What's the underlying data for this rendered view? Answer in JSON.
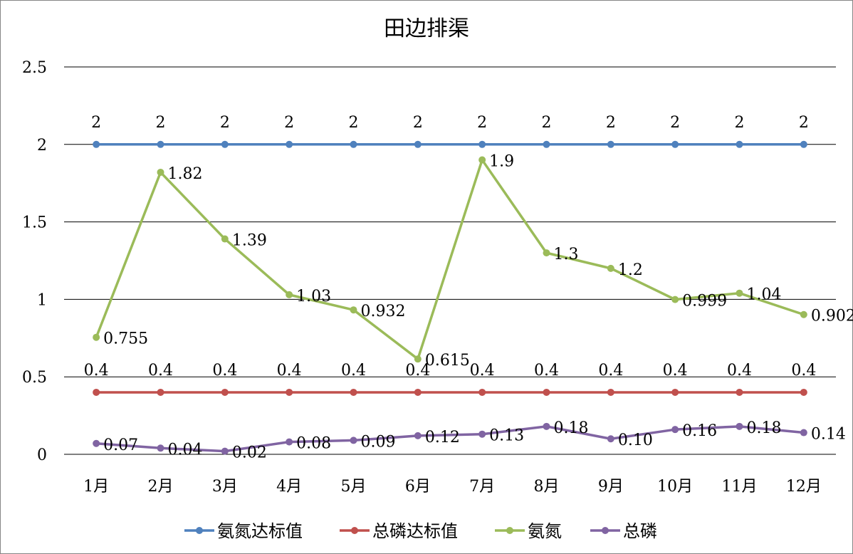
{
  "chart_data": {
    "type": "line",
    "title": "田边排渠",
    "xlabel": "",
    "ylabel": "",
    "categories": [
      "1月",
      "2月",
      "3月",
      "4月",
      "5月",
      "6月",
      "7月",
      "8月",
      "9月",
      "10月",
      "11月",
      "12月"
    ],
    "ylim": [
      0,
      2.5
    ],
    "yticks": [
      0,
      0.5,
      1,
      1.5,
      2,
      2.5
    ],
    "ytick_labels": [
      "0",
      "0.5",
      "1",
      "1.5",
      "2",
      "2.5"
    ],
    "grid": true,
    "legend_position": "bottom",
    "series": [
      {
        "name": "氨氮达标值",
        "color": "#4F81BD",
        "values": [
          2,
          2,
          2,
          2,
          2,
          2,
          2,
          2,
          2,
          2,
          2,
          2
        ],
        "labels": [
          "2",
          "2",
          "2",
          "2",
          "2",
          "2",
          "2",
          "2",
          "2",
          "2",
          "2",
          "2"
        ],
        "label_position": "above"
      },
      {
        "name": "总磷达标值",
        "color": "#C0504D",
        "values": [
          0.4,
          0.4,
          0.4,
          0.4,
          0.4,
          0.4,
          0.4,
          0.4,
          0.4,
          0.4,
          0.4,
          0.4
        ],
        "labels": [
          "0.4",
          "0.4",
          "0.4",
          "0.4",
          "0.4",
          "0.4",
          "0.4",
          "0.4",
          "0.4",
          "0.4",
          "0.4",
          "0.4"
        ],
        "label_position": "above"
      },
      {
        "name": "氨氮",
        "color": "#9BBB59",
        "values": [
          0.755,
          1.82,
          1.39,
          1.03,
          0.932,
          0.615,
          1.9,
          1.3,
          1.2,
          0.999,
          1.04,
          0.902
        ],
        "labels": [
          "0.755",
          "1.82",
          "1.39",
          "1.03",
          "0.932",
          "0.615",
          "1.9",
          "1.3",
          "1.2",
          "0.999",
          "1.04",
          "0.902"
        ],
        "label_position": "right"
      },
      {
        "name": "总磷",
        "color": "#8064A2",
        "values": [
          0.07,
          0.04,
          0.02,
          0.08,
          0.09,
          0.12,
          0.13,
          0.18,
          0.1,
          0.16,
          0.18,
          0.14
        ],
        "labels": [
          "0.07",
          "0.04",
          "0.02",
          "0.08",
          "0.09",
          "0.12",
          "0.13",
          "0.18",
          "0.10",
          "0.16",
          "0.18",
          "0.14"
        ],
        "label_position": "right"
      }
    ]
  }
}
